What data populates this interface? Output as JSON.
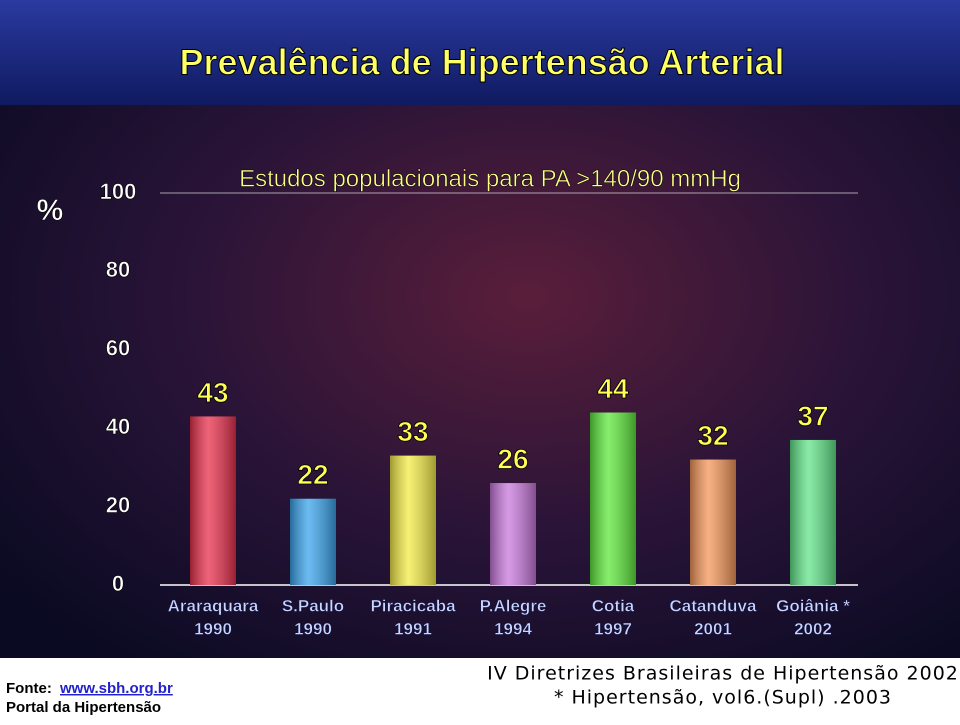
{
  "chart_data": {
    "type": "bar",
    "title": "Prevalência de Hipertensão Arterial",
    "subtitle": "Estudos populacionais para PA >140/90 mmHg",
    "y_label": "%",
    "categories": [
      [
        "Araraquara",
        "1990"
      ],
      [
        "S.Paulo",
        "1990"
      ],
      [
        "Piracicaba",
        "1991"
      ],
      [
        "P.Alegre",
        "1994"
      ],
      [
        "Cotia",
        "1997"
      ],
      [
        "Catanduva",
        "2001"
      ],
      [
        "Goiânia *",
        "2002"
      ]
    ],
    "values": [
      43,
      22,
      33,
      26,
      44,
      32,
      37
    ],
    "colors": [
      "#e8304c",
      "#3aa4ec",
      "#f4ec48",
      "#c878dc",
      "#5ee83c",
      "#f4965a",
      "#62e488"
    ],
    "ylim": [
      0,
      100
    ],
    "yticks": [
      0,
      20,
      40,
      60,
      80,
      100
    ]
  },
  "footer": {
    "source_label": "Fonte:",
    "source_url": "www.sbh.org.br",
    "portal": "Portal da Hipertensão",
    "reference": "IV Diretrizes Brasileiras de Hipertensão 2002",
    "note": "* Hipertensão, vol6.(Supl) .2003"
  }
}
